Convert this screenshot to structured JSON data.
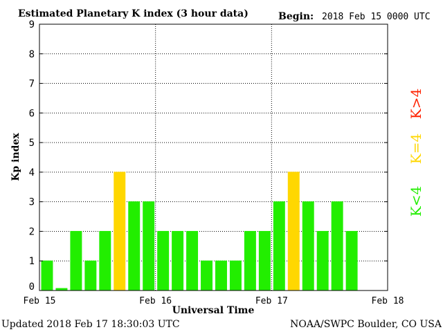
{
  "header": {
    "title": "Estimated Planetary K index (3 hour data)",
    "begin_label": "Begin:",
    "begin_value": "2018 Feb 15 0000 UTC"
  },
  "footer": {
    "updated": "Updated 2018 Feb 17 18:30:03 UTC",
    "credit": "NOAA/SWPC Boulder, CO USA"
  },
  "legend": {
    "high": "K>4",
    "equal": "K=4",
    "low": "K<4"
  },
  "colors": {
    "below4": "#22ee00",
    "equal4": "#ffd700",
    "above4": "#ff2200",
    "grid": "#000000",
    "background": "#ffffff"
  },
  "chart_data": {
    "type": "bar",
    "title": "Estimated Planetary K index (3 hour data)",
    "xlabel": "Universal Time",
    "ylabel": "Kp index",
    "ylim": [
      0,
      9
    ],
    "yticks": [
      "0",
      "1",
      "2",
      "3",
      "4",
      "5",
      "6",
      "7",
      "8",
      "9"
    ],
    "xticks": [
      "Feb 15",
      "Feb 16",
      "Feb 17",
      "Feb 18"
    ],
    "x_days": 3,
    "bins_per_day": 8,
    "grid": "dotted",
    "legend_position": "right",
    "series": [
      {
        "values": [
          1,
          0.07,
          2,
          1,
          2,
          4,
          3,
          3,
          2,
          2,
          2,
          1,
          1,
          1,
          2,
          2,
          3,
          4,
          3,
          2,
          3,
          2
        ]
      }
    ]
  }
}
